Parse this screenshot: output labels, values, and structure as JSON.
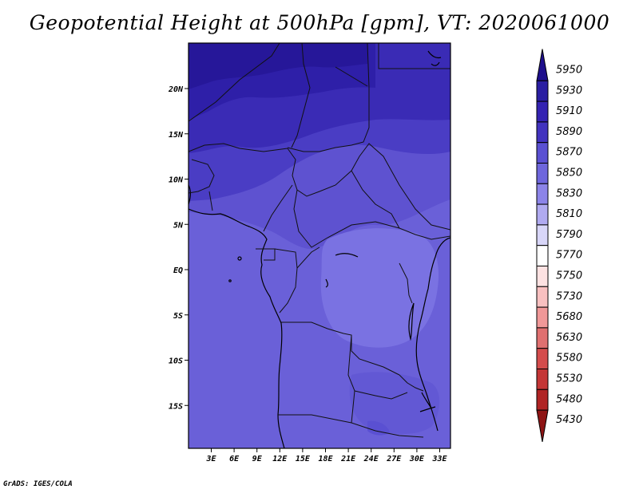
{
  "title": "Geopotential Height at 500hPa [gpm], VT: 2020061000",
  "credit": "GrADS: IGES/COLA",
  "map": {
    "lon_range": [
      0,
      35
    ],
    "lat_range": [
      -20,
      25
    ],
    "x_ticks": [
      "3E",
      "6E",
      "9E",
      "12E",
      "15E",
      "18E",
      "21E",
      "24E",
      "27E",
      "30E",
      "33E"
    ],
    "y_ticks": [
      "20N",
      "15N",
      "10N",
      "5N",
      "EQ",
      "5S",
      "10S",
      "15S"
    ]
  },
  "legend": {
    "levels": [
      "5950",
      "5930",
      "5910",
      "5890",
      "5870",
      "5850",
      "5830",
      "5810",
      "5790",
      "5770",
      "5750",
      "5730",
      "5680",
      "5630",
      "5580",
      "5530",
      "5480",
      "5430"
    ],
    "colors": [
      "#1e0f8c",
      "#2a1ea2",
      "#3423b2",
      "#4233bf",
      "#5a50d2",
      "#6e66dc",
      "#8c84e8",
      "#b0aaf0",
      "#d8d6f8",
      "#ffffff",
      "#fde2e2",
      "#f8c0c0",
      "#f09898",
      "#e07070",
      "#d44c4c",
      "#c43636",
      "#b02424",
      "#8e1414"
    ]
  },
  "colors": {
    "north_band": "#3a2bb5",
    "sahel_band": "#4a3dc4",
    "mid_band": "#5e52d0",
    "south_band": "#6a60d8",
    "congo_patch": "#7a72e2"
  }
}
